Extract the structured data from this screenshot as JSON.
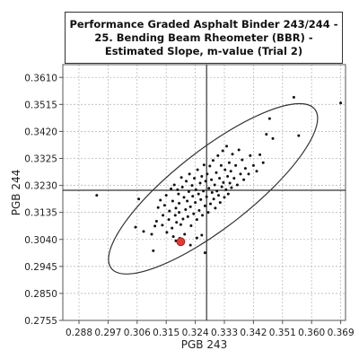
{
  "chart_data": {
    "type": "scatter",
    "title": "Performance Graded Asphalt Binder 243/244 - 25. Bending Beam Rheometer (BBR) - Estimated Slope, m-value (Trial 2)",
    "xlabel": "PGB 243",
    "ylabel": "PGB 244",
    "xlim": [
      0.283,
      0.3705
    ],
    "ylim": [
      0.2755,
      0.3655
    ],
    "x_ticks": [
      "0.288",
      "0.297",
      "0.306",
      "0.315",
      "0.324",
      "0.333",
      "0.342",
      "0.351",
      "0.360",
      "0.369"
    ],
    "y_ticks": [
      "0.2755",
      "0.2850",
      "0.2945",
      "0.3040",
      "0.3135",
      "0.3230",
      "0.3325",
      "0.3420",
      "0.3515",
      "0.3610"
    ],
    "grid": true,
    "median_lines": {
      "x": 0.3275,
      "y": 0.3213
    },
    "highlight_point": {
      "x": 0.3195,
      "y": 0.3032,
      "color": "#e53935"
    },
    "ellipse": {
      "cx": 0.3295,
      "cy": 0.3218,
      "rx": 0.0195,
      "ry": 0.0088,
      "angle_deg": -38
    },
    "point_color": "#111111",
    "points": [
      [
        0.2935,
        0.3195
      ],
      [
        0.3065,
        0.3182
      ],
      [
        0.3055,
        0.3083
      ],
      [
        0.308,
        0.3068
      ],
      [
        0.3105,
        0.3058
      ],
      [
        0.311,
        0.3
      ],
      [
        0.3115,
        0.3087
      ],
      [
        0.312,
        0.3104
      ],
      [
        0.3125,
        0.3152
      ],
      [
        0.3132,
        0.3178
      ],
      [
        0.3138,
        0.309
      ],
      [
        0.314,
        0.3125
      ],
      [
        0.3145,
        0.316
      ],
      [
        0.315,
        0.3195
      ],
      [
        0.3152,
        0.3065
      ],
      [
        0.3158,
        0.311
      ],
      [
        0.316,
        0.314
      ],
      [
        0.3165,
        0.3218
      ],
      [
        0.3168,
        0.308
      ],
      [
        0.317,
        0.3175
      ],
      [
        0.3172,
        0.305
      ],
      [
        0.3175,
        0.3232
      ],
      [
        0.3178,
        0.3125
      ],
      [
        0.318,
        0.315
      ],
      [
        0.3182,
        0.31
      ],
      [
        0.3185,
        0.3215
      ],
      [
        0.3188,
        0.32
      ],
      [
        0.319,
        0.3135
      ],
      [
        0.319,
        0.3167
      ],
      [
        0.3192,
        0.3044
      ],
      [
        0.3195,
        0.3092
      ],
      [
        0.3197,
        0.3258
      ],
      [
        0.32,
        0.3224
      ],
      [
        0.3202,
        0.3112
      ],
      [
        0.3205,
        0.3188
      ],
      [
        0.3207,
        0.3058
      ],
      [
        0.321,
        0.3145
      ],
      [
        0.3212,
        0.3245
      ],
      [
        0.3215,
        0.3175
      ],
      [
        0.3217,
        0.312
      ],
      [
        0.322,
        0.3208
      ],
      [
        0.3222,
        0.327
      ],
      [
        0.3225,
        0.3155
      ],
      [
        0.3227,
        0.3088
      ],
      [
        0.323,
        0.323
      ],
      [
        0.3232,
        0.3192
      ],
      [
        0.3235,
        0.313
      ],
      [
        0.3237,
        0.3255
      ],
      [
        0.324,
        0.317
      ],
      [
        0.3242,
        0.3215
      ],
      [
        0.3245,
        0.311
      ],
      [
        0.3247,
        0.3285
      ],
      [
        0.325,
        0.32
      ],
      [
        0.3252,
        0.3142
      ],
      [
        0.3255,
        0.3238
      ],
      [
        0.3257,
        0.318
      ],
      [
        0.326,
        0.3262
      ],
      [
        0.3262,
        0.3125
      ],
      [
        0.3265,
        0.321
      ],
      [
        0.3267,
        0.3302
      ],
      [
        0.327,
        0.2993
      ],
      [
        0.327,
        0.3158
      ],
      [
        0.3272,
        0.3245
      ],
      [
        0.3275,
        0.319
      ],
      [
        0.3277,
        0.327
      ],
      [
        0.328,
        0.3135
      ],
      [
        0.3282,
        0.322
      ],
      [
        0.3285,
        0.3298
      ],
      [
        0.3287,
        0.3165
      ],
      [
        0.329,
        0.325
      ],
      [
        0.3292,
        0.3205
      ],
      [
        0.3295,
        0.3318
      ],
      [
        0.3297,
        0.3182
      ],
      [
        0.33,
        0.3232
      ],
      [
        0.3302,
        0.315
      ],
      [
        0.3305,
        0.3275
      ],
      [
        0.3307,
        0.321
      ],
      [
        0.331,
        0.3335
      ],
      [
        0.3312,
        0.3195
      ],
      [
        0.3315,
        0.3255
      ],
      [
        0.3317,
        0.317
      ],
      [
        0.332,
        0.33
      ],
      [
        0.3322,
        0.3225
      ],
      [
        0.3325,
        0.3352
      ],
      [
        0.3327,
        0.324
      ],
      [
        0.333,
        0.3188
      ],
      [
        0.3332,
        0.3285
      ],
      [
        0.3335,
        0.3215
      ],
      [
        0.3337,
        0.3368
      ],
      [
        0.334,
        0.3262
      ],
      [
        0.3342,
        0.32
      ],
      [
        0.3345,
        0.331
      ],
      [
        0.3347,
        0.3238
      ],
      [
        0.335,
        0.328
      ],
      [
        0.3352,
        0.3222
      ],
      [
        0.3355,
        0.334
      ],
      [
        0.336,
        0.3255
      ],
      [
        0.3365,
        0.33
      ],
      [
        0.337,
        0.3232
      ],
      [
        0.3375,
        0.3355
      ],
      [
        0.338,
        0.327
      ],
      [
        0.3385,
        0.332
      ],
      [
        0.339,
        0.325
      ],
      [
        0.3395,
        0.329
      ],
      [
        0.3405,
        0.327
      ],
      [
        0.341,
        0.3335
      ],
      [
        0.342,
        0.33
      ],
      [
        0.343,
        0.328
      ],
      [
        0.344,
        0.3338
      ],
      [
        0.345,
        0.331
      ],
      [
        0.346,
        0.341
      ],
      [
        0.347,
        0.3465
      ],
      [
        0.348,
        0.3395
      ],
      [
        0.3545,
        0.354
      ],
      [
        0.356,
        0.3405
      ],
      [
        0.369,
        0.352
      ],
      [
        0.326,
        0.3055
      ],
      [
        0.3225,
        0.302
      ],
      [
        0.318,
        0.3035
      ],
      [
        0.3245,
        0.3045
      ]
    ]
  }
}
